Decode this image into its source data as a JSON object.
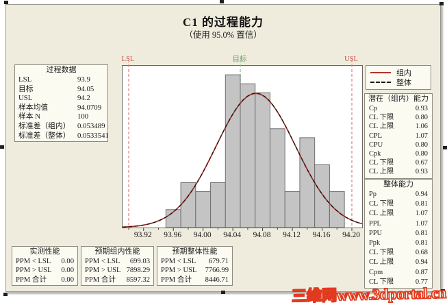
{
  "title": "C1 的过程能力",
  "subtitle": "（使用 95.0% 置信）",
  "watermark": "三维网www.3dportal.cn",
  "process_data": {
    "title": "过程数据",
    "rows": [
      {
        "label": "LSL",
        "value": "93.9"
      },
      {
        "label": "目标",
        "value": "94.05"
      },
      {
        "label": "USL",
        "value": "94.2"
      },
      {
        "label": "样本均值",
        "value": "94.0709"
      },
      {
        "label": "样本 N",
        "value": "100"
      },
      {
        "label": "标准差（组内）",
        "value": "0.053489"
      },
      {
        "label": "标准差（整体）",
        "value": "0.0533541"
      }
    ]
  },
  "legend": {
    "items": [
      {
        "label": "组内",
        "style": "solid",
        "color": "#b03430"
      },
      {
        "label": "整体",
        "style": "dashed",
        "color": "#1a1a1a"
      }
    ]
  },
  "within_capability": {
    "title": "潜在（组内）能力",
    "rows": [
      {
        "label": "Cp",
        "value": "0.93"
      },
      {
        "label": "CL 下限",
        "value": "0.80"
      },
      {
        "label": "CL 上限",
        "value": "1.06"
      },
      {
        "label": "CPL",
        "value": "1.07"
      },
      {
        "label": "CPU",
        "value": "0.80"
      },
      {
        "label": "Cpk",
        "value": "0.80"
      },
      {
        "label": "CL 下限",
        "value": "0.67"
      },
      {
        "label": "CL 上限",
        "value": "0.93"
      }
    ]
  },
  "overall_capability": {
    "title": "整体能力",
    "rows": [
      {
        "label": "Pp",
        "value": "0.94"
      },
      {
        "label": "CL 下限",
        "value": "0.81"
      },
      {
        "label": "CL 上限",
        "value": "1.07"
      },
      {
        "label": "PPL",
        "value": "1.07"
      },
      {
        "label": "PPU",
        "value": "0.81"
      },
      {
        "label": "Ppk",
        "value": "0.81"
      },
      {
        "label": "CL 下限",
        "value": "0.68"
      },
      {
        "label": "CL 上限",
        "value": "0.94"
      },
      {
        "label": "Cpm",
        "value": "0.87"
      },
      {
        "label": "CL 下限",
        "value": "0.77"
      }
    ]
  },
  "observed_performance": {
    "title": "实测性能",
    "rows": [
      {
        "label": "PPM < LSL",
        "value": "0.00"
      },
      {
        "label": "PPM > USL",
        "value": "0.00"
      },
      {
        "label": "PPM 合计",
        "value": "0.00"
      }
    ]
  },
  "expected_within_performance": {
    "title": "预期组内性能",
    "rows": [
      {
        "label": "PPM < LSL",
        "value": "699.03"
      },
      {
        "label": "PPM > USL",
        "value": "7898.29"
      },
      {
        "label": "PPM 合计",
        "value": "8597.32"
      }
    ]
  },
  "expected_overall_performance": {
    "title": "预期整体性能",
    "rows": [
      {
        "label": "PPM < LSL",
        "value": "679.71"
      },
      {
        "label": "PPM > USL",
        "value": "7766.99"
      },
      {
        "label": "PPM 合计",
        "value": "8446.71"
      }
    ]
  },
  "chart_data": {
    "type": "bar",
    "subtype": "capability-histogram",
    "title": "C1 的过程能力",
    "xlabel": "",
    "ylabel": "",
    "x_min": 93.8917,
    "x_max": 94.2138,
    "y_max": 18,
    "bin_start": 93.95,
    "bin_width": 0.02,
    "counts": [
      2,
      5,
      4,
      5,
      17,
      16,
      15,
      11,
      4,
      10,
      7,
      4
    ],
    "sample_n": 100,
    "x_tick_major": [
      93.92,
      93.96,
      94.0,
      94.04,
      94.08,
      94.12,
      94.16,
      94.2
    ],
    "x_tick_minor_step": 0.02,
    "x_tick_labels": [
      "93.92",
      "93.96",
      "94.00",
      "94.04",
      "94.08",
      "94.12",
      "94.16",
      "94.20"
    ],
    "grid": false,
    "legend_position": "right",
    "curves": [
      {
        "name": "组内",
        "mean": 94.0709,
        "sd": 0.053489,
        "style": "solid",
        "color": "#a12f28",
        "width": 1.7
      },
      {
        "name": "整体",
        "mean": 94.0709,
        "sd": 0.0533541,
        "style": "dashed",
        "color": "#141414",
        "width": 1.2
      }
    ],
    "curve_area_scale": 2,
    "spec_lines": [
      {
        "label": "LSL",
        "x": 93.9,
        "line_color": "#e08585",
        "label_color": "#c2564f"
      },
      {
        "label": "目标",
        "x": 94.05,
        "line_color": "#96be96",
        "label_color": "#6fa06f"
      },
      {
        "label": "USL",
        "x": 94.2,
        "line_color": "#e08585",
        "label_color": "#c2564f"
      }
    ],
    "colors": {
      "background": "#efecdd",
      "panel": "#fcfbf2",
      "bar_fill": "#c4c4c4",
      "bar_stroke": "#6f6f6f",
      "tick": "#3a3a3a"
    }
  }
}
